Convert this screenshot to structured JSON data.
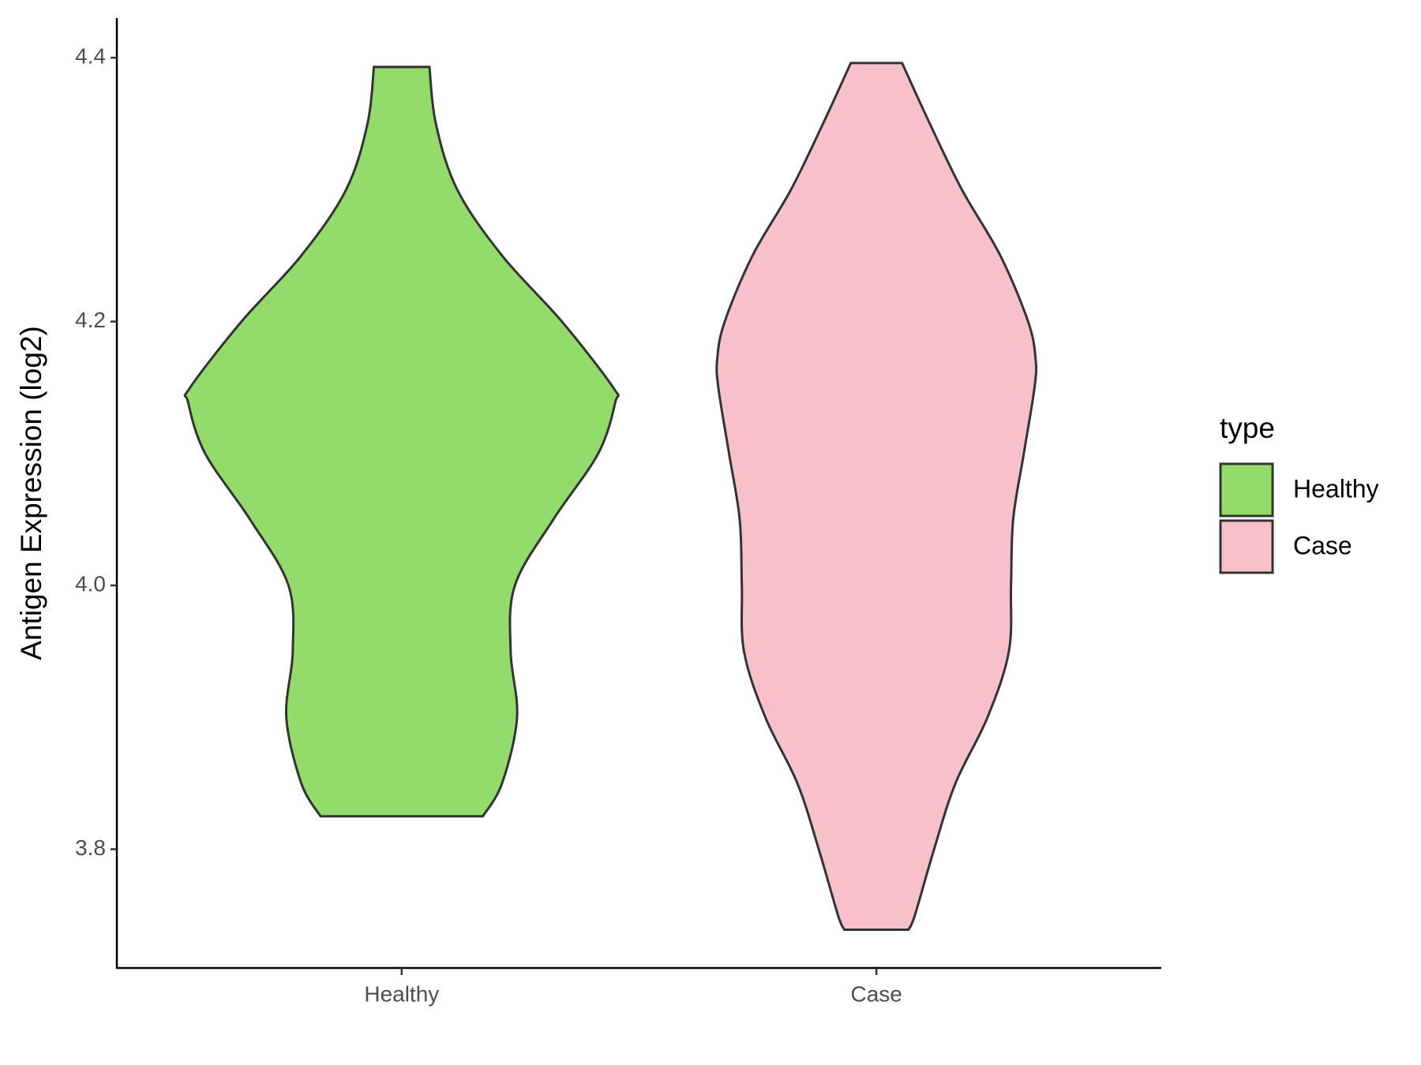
{
  "chart_data": {
    "type": "violin",
    "y_label": "Antigen Expression (log2)",
    "categories": [
      "Healthy",
      "Case"
    ],
    "legend_title": "type",
    "legend_position": "right",
    "series": [
      {
        "name": "Healthy",
        "color": "#93dc6b",
        "y": [
          3.825,
          3.85,
          3.9,
          3.95,
          4.0,
          4.05,
          4.1,
          4.139,
          4.15,
          4.2,
          4.25,
          4.3,
          4.35,
          4.393
        ],
        "density": [
          0.38,
          0.47,
          0.54,
          0.51,
          0.53,
          0.71,
          0.92,
          1.0,
          0.99,
          0.75,
          0.47,
          0.26,
          0.16,
          0.13
        ]
      },
      {
        "name": "Case",
        "color": "#f7c0cb",
        "y": [
          3.739,
          3.75,
          3.8,
          3.85,
          3.9,
          3.95,
          4.0,
          4.05,
          4.1,
          4.15,
          4.172,
          4.2,
          4.25,
          4.3,
          4.35,
          4.396
        ],
        "density": [
          0.15,
          0.18,
          0.27,
          0.37,
          0.52,
          0.62,
          0.63,
          0.64,
          0.69,
          0.74,
          0.745,
          0.71,
          0.58,
          0.4,
          0.25,
          0.12
        ]
      }
    ],
    "ylim": [
      3.71,
      4.43
    ],
    "yticks": [
      3.8,
      {
        "value": 4.0,
        "label": "4.0"
      },
      4.2,
      4.4
    ]
  }
}
